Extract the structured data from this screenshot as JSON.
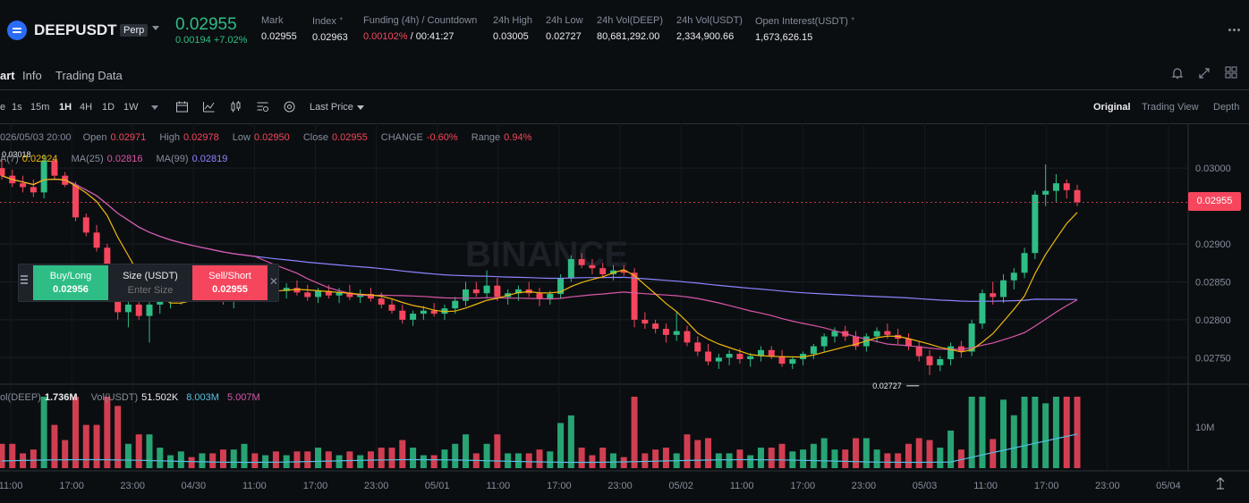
{
  "header": {
    "symbol": "DEEPUSDT",
    "contract_type": "Perp",
    "last_price": "0.02955",
    "change": "0.00194 +7.02%",
    "stats": [
      {
        "label": "Mark",
        "value": "0.02955"
      },
      {
        "label": "Index ᐩ",
        "value": "0.02963"
      },
      {
        "label": "Funding (4h) / Countdown",
        "value_red": "0.00102%",
        "value_white": " / 00:41:27"
      },
      {
        "label": "24h High",
        "value": "0.03005"
      },
      {
        "label": "24h Low",
        "value": "0.02727"
      },
      {
        "label": "24h Vol(DEEP)",
        "value": "80,681,292.00"
      },
      {
        "label": "24h Vol(USDT)",
        "value": "2,334,900.66"
      },
      {
        "label": "Open Interest(USDT) ᐩ",
        "value": "1,673,626.15"
      }
    ]
  },
  "tabs": [
    "art",
    "Info",
    "Trading Data"
  ],
  "toolbar": {
    "intervals": [
      "e",
      "1s",
      "15m",
      "1H",
      "4H",
      "1D",
      "1W"
    ],
    "active_interval": "1H",
    "price_type": "Last Price",
    "views": [
      "Original",
      "Trading View",
      "Depth"
    ],
    "active_view": "Original"
  },
  "ohlc_legend": {
    "date": "026/05/03 20:00",
    "open_label": "Open",
    "open": "0.02971",
    "high_label": "High",
    "high": "0.02978",
    "low_label": "Low",
    "low": "0.02950",
    "close_label": "Close",
    "close": "0.02955",
    "change_label": "CHANGE",
    "change": "-0.60%",
    "range_label": "Range",
    "range": "0.94%"
  },
  "ma_legend": {
    "ma7_label": "A(7)",
    "ma7": "0.02924",
    "ma25_label": "MA(25)",
    "ma25": "0.02816",
    "ma99_label": "MA(99)",
    "ma99": "0.02819"
  },
  "vol_legend": {
    "vol_deep_label": "ol(DEEP)",
    "vol_deep": "1.736M",
    "vol_usdt_label": "Vol(USDT)",
    "vol_usdt": "51.502K",
    "vol_ma1": "8.003M",
    "vol_ma2": "5.007M"
  },
  "trade_widget": {
    "buy_label": "Buy/Long",
    "buy_price": "0.02956",
    "size_label": "Size (USDT)",
    "size_placeholder": "Enter Size",
    "sell_label": "Sell/Short",
    "sell_price": "0.02955"
  },
  "watermark": "BINANCE",
  "high_marker": "0.03018",
  "low_marker": "0.02727",
  "current_price_tag": "0.02955",
  "price_axis": [
    "0.03000",
    "0.02900",
    "0.02850",
    "0.02800",
    "0.02750"
  ],
  "volume_axis": [
    "10M"
  ],
  "time_axis": [
    "11:00",
    "17:00",
    "23:00",
    "04/30",
    "11:00",
    "17:00",
    "23:00",
    "05/01",
    "11:00",
    "17:00",
    "23:00",
    "05/02",
    "11:00",
    "17:00",
    "23:00",
    "05/03",
    "11:00",
    "17:00",
    "23:00",
    "05/04"
  ],
  "colors": {
    "up": "#2ebd85",
    "down": "#f6465d",
    "ma7": "#f0b90b",
    "ma25": "#d957a8",
    "ma99": "#8b84ff",
    "vol_ma1": "#55c0e0"
  },
  "chart_data": {
    "type": "candlestick",
    "interval": "1H",
    "candles": [
      [
        0.03,
        0.03015,
        0.02985,
        0.0299
      ],
      [
        0.0299,
        0.02998,
        0.02975,
        0.0298
      ],
      [
        0.0298,
        0.0299,
        0.02968,
        0.02975
      ],
      [
        0.02975,
        0.02985,
        0.02962,
        0.02968
      ],
      [
        0.02968,
        0.03018,
        0.0296,
        0.0301
      ],
      [
        0.0301,
        0.03012,
        0.02985,
        0.0299
      ],
      [
        0.0299,
        0.02995,
        0.02975,
        0.02978
      ],
      [
        0.02978,
        0.02982,
        0.0293,
        0.02935
      ],
      [
        0.02935,
        0.0294,
        0.0291,
        0.02915
      ],
      [
        0.02915,
        0.02925,
        0.0289,
        0.02895
      ],
      [
        0.02895,
        0.029,
        0.0283,
        0.0284
      ],
      [
        0.0284,
        0.0285,
        0.028,
        0.0281
      ],
      [
        0.0281,
        0.0283,
        0.0279,
        0.0282
      ],
      [
        0.0282,
        0.0284,
        0.028,
        0.02805
      ],
      [
        0.02805,
        0.0283,
        0.0277,
        0.0282
      ],
      [
        0.0282,
        0.02835,
        0.02808,
        0.02828
      ],
      [
        0.02828,
        0.0284,
        0.02815,
        0.02832
      ],
      [
        0.02832,
        0.02845,
        0.0282,
        0.02838
      ],
      [
        0.02838,
        0.0285,
        0.02828,
        0.02835
      ],
      [
        0.02835,
        0.02848,
        0.02825,
        0.0284
      ],
      [
        0.0284,
        0.02852,
        0.0283,
        0.02835
      ],
      [
        0.02835,
        0.02845,
        0.0282,
        0.02828
      ],
      [
        0.02828,
        0.0284,
        0.02815,
        0.02835
      ],
      [
        0.02835,
        0.0285,
        0.02828,
        0.02845
      ],
      [
        0.02845,
        0.02855,
        0.02835,
        0.0284
      ],
      [
        0.0284,
        0.0285,
        0.0283,
        0.02844
      ],
      [
        0.02844,
        0.02855,
        0.02835,
        0.02838
      ],
      [
        0.02838,
        0.02848,
        0.02828,
        0.02842
      ],
      [
        0.02842,
        0.02852,
        0.02832,
        0.02836
      ],
      [
        0.02836,
        0.02846,
        0.02825,
        0.0283
      ],
      [
        0.0283,
        0.02842,
        0.02822,
        0.02838
      ],
      [
        0.02838,
        0.02846,
        0.02828,
        0.02832
      ],
      [
        0.02832,
        0.02842,
        0.02822,
        0.02836
      ],
      [
        0.02836,
        0.02846,
        0.02826,
        0.0283
      ],
      [
        0.0283,
        0.0284,
        0.02822,
        0.02834
      ],
      [
        0.02834,
        0.02842,
        0.02824,
        0.02828
      ],
      [
        0.02828,
        0.02836,
        0.02815,
        0.0282
      ],
      [
        0.0282,
        0.02828,
        0.02808,
        0.02812
      ],
      [
        0.02812,
        0.0282,
        0.02795,
        0.028
      ],
      [
        0.028,
        0.02812,
        0.02792,
        0.02808
      ],
      [
        0.02808,
        0.02818,
        0.028,
        0.02812
      ],
      [
        0.02812,
        0.02822,
        0.02804,
        0.02808
      ],
      [
        0.02808,
        0.0282,
        0.028,
        0.02815
      ],
      [
        0.02815,
        0.0283,
        0.02808,
        0.02825
      ],
      [
        0.02825,
        0.0285,
        0.02818,
        0.0284
      ],
      [
        0.0284,
        0.0285,
        0.0283,
        0.02835
      ],
      [
        0.02835,
        0.02865,
        0.02828,
        0.02845
      ],
      [
        0.02845,
        0.02855,
        0.02825,
        0.0283
      ],
      [
        0.0283,
        0.0284,
        0.0282,
        0.02835
      ],
      [
        0.02835,
        0.02845,
        0.02825,
        0.0284
      ],
      [
        0.0284,
        0.0285,
        0.0283,
        0.02835
      ],
      [
        0.02835,
        0.02842,
        0.02818,
        0.02828
      ],
      [
        0.02828,
        0.02838,
        0.0282,
        0.02834
      ],
      [
        0.02834,
        0.0286,
        0.02828,
        0.02855
      ],
      [
        0.02855,
        0.02885,
        0.0285,
        0.0288
      ],
      [
        0.0288,
        0.02888,
        0.02868,
        0.02872
      ],
      [
        0.02872,
        0.0288,
        0.0286,
        0.02868
      ],
      [
        0.02868,
        0.02875,
        0.02855,
        0.0286
      ],
      [
        0.0286,
        0.02872,
        0.02852,
        0.02865
      ],
      [
        0.02865,
        0.02872,
        0.02858,
        0.02862
      ],
      [
        0.02862,
        0.02868,
        0.0279,
        0.028
      ],
      [
        0.028,
        0.0281,
        0.02788,
        0.02795
      ],
      [
        0.02795,
        0.028,
        0.02782,
        0.02788
      ],
      [
        0.02788,
        0.02795,
        0.0277,
        0.0278
      ],
      [
        0.0278,
        0.0281,
        0.02772,
        0.02785
      ],
      [
        0.02785,
        0.02792,
        0.02765,
        0.0277
      ],
      [
        0.0277,
        0.02778,
        0.02752,
        0.02758
      ],
      [
        0.02758,
        0.02768,
        0.0274,
        0.02745
      ],
      [
        0.02745,
        0.02755,
        0.02735,
        0.0275
      ],
      [
        0.0275,
        0.0276,
        0.0274,
        0.02755
      ],
      [
        0.02755,
        0.02762,
        0.02742,
        0.02748
      ],
      [
        0.02748,
        0.02756,
        0.02738,
        0.02752
      ],
      [
        0.02752,
        0.02765,
        0.02745,
        0.0276
      ],
      [
        0.0276,
        0.02765,
        0.02748,
        0.02752
      ],
      [
        0.02752,
        0.0276,
        0.02738,
        0.02742
      ],
      [
        0.02742,
        0.02752,
        0.02735,
        0.02748
      ],
      [
        0.02748,
        0.02758,
        0.0274,
        0.02755
      ],
      [
        0.02755,
        0.02768,
        0.02748,
        0.02765
      ],
      [
        0.02765,
        0.02782,
        0.02758,
        0.02778
      ],
      [
        0.02778,
        0.0279,
        0.0277,
        0.02785
      ],
      [
        0.02785,
        0.02792,
        0.02772,
        0.02778
      ],
      [
        0.02778,
        0.02785,
        0.0276,
        0.02765
      ],
      [
        0.02765,
        0.02782,
        0.02758,
        0.02778
      ],
      [
        0.02778,
        0.0279,
        0.0277,
        0.02785
      ],
      [
        0.02785,
        0.02795,
        0.02775,
        0.0278
      ],
      [
        0.0278,
        0.02788,
        0.02768,
        0.02775
      ],
      [
        0.02775,
        0.02782,
        0.0276,
        0.02765
      ],
      [
        0.02765,
        0.02772,
        0.02745,
        0.02752
      ],
      [
        0.02752,
        0.0276,
        0.02727,
        0.0274
      ],
      [
        0.0274,
        0.02752,
        0.02732,
        0.02748
      ],
      [
        0.02748,
        0.0277,
        0.0274,
        0.02765
      ],
      [
        0.02765,
        0.02772,
        0.0275,
        0.02758
      ],
      [
        0.02758,
        0.028,
        0.02752,
        0.02795
      ],
      [
        0.02795,
        0.0284,
        0.02788,
        0.02835
      ],
      [
        0.02835,
        0.0285,
        0.0282,
        0.0283
      ],
      [
        0.0283,
        0.0286,
        0.02822,
        0.02852
      ],
      [
        0.02852,
        0.02868,
        0.0284,
        0.02862
      ],
      [
        0.02862,
        0.02895,
        0.02855,
        0.02888
      ],
      [
        0.02888,
        0.0297,
        0.0288,
        0.02965
      ],
      [
        0.02965,
        0.03005,
        0.0295,
        0.0297
      ],
      [
        0.0297,
        0.02992,
        0.02955,
        0.0298
      ],
      [
        0.0298,
        0.02985,
        0.0296,
        0.02971
      ],
      [
        0.02971,
        0.02978,
        0.0295,
        0.02955
      ]
    ],
    "price_range": [
      0.02715,
      0.03045
    ]
  }
}
